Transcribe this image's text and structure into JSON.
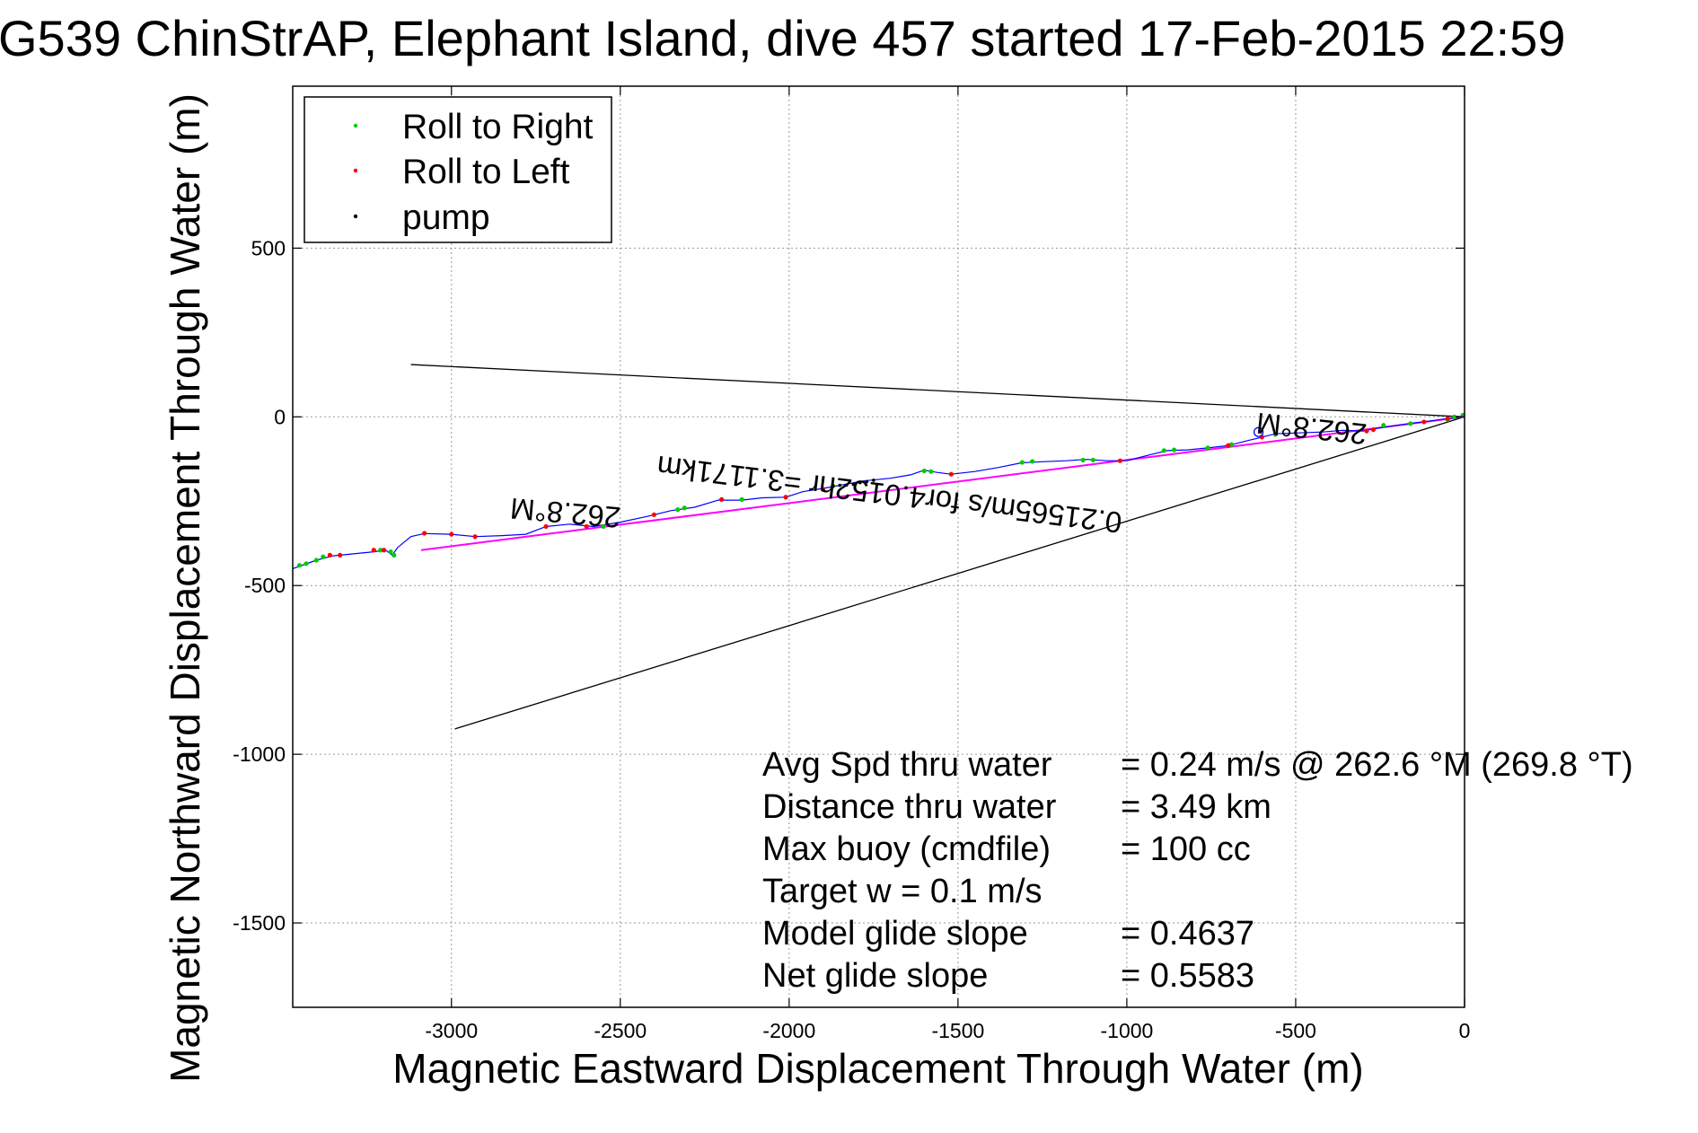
{
  "title": "G539 ChinStrAP, Elephant Island, dive 457 started 17-Feb-2015 22:59",
  "chart_data": {
    "type": "line",
    "xlabel": "Magnetic Eastward Displacement Through Water (m)",
    "ylabel": "Magnetic Northward Displacement Through Water (m)",
    "xlim": [
      -3470,
      0
    ],
    "ylim": [
      -1750,
      980
    ],
    "xticks": [
      -3000,
      -2500,
      -2000,
      -1500,
      -1000,
      -500,
      0
    ],
    "yticks": [
      500,
      0,
      -500,
      -1000,
      -1500
    ],
    "grid": true,
    "legend_position": "top-left",
    "legend": [
      {
        "label": "Roll to Right",
        "color": "#00cc00"
      },
      {
        "label": "Roll to Left",
        "color": "#ff0000"
      },
      {
        "label": "pump",
        "color": "#000000"
      }
    ],
    "series": [
      {
        "name": "Roll to Right",
        "color": "#00cc00",
        "points": [
          [
            -3450,
            -440
          ],
          [
            -3430,
            -435
          ],
          [
            -3400,
            -425
          ],
          [
            -3380,
            -415
          ],
          [
            -3210,
            -395
          ],
          [
            -3180,
            -400
          ],
          [
            -3170,
            -410
          ],
          [
            -2550,
            -325
          ],
          [
            -2330,
            -275
          ],
          [
            -2310,
            -270
          ],
          [
            -2140,
            -245
          ],
          [
            -1870,
            -205
          ],
          [
            -1600,
            -160
          ],
          [
            -1580,
            -162
          ],
          [
            -1310,
            -135
          ],
          [
            -1280,
            -132
          ],
          [
            -1130,
            -128
          ],
          [
            -1100,
            -128
          ],
          [
            -890,
            -100
          ],
          [
            -860,
            -98
          ],
          [
            -760,
            -92
          ],
          [
            -690,
            -82
          ],
          [
            -560,
            -52
          ],
          [
            -240,
            -25
          ],
          [
            -160,
            -20
          ],
          [
            -50,
            -8
          ],
          [
            -30,
            0
          ],
          [
            -5,
            5
          ]
        ]
      },
      {
        "name": "Roll to Left",
        "color": "#ff0000",
        "points": [
          [
            -3360,
            -410
          ],
          [
            -3330,
            -410
          ],
          [
            -3230,
            -395
          ],
          [
            -3200,
            -395
          ],
          [
            -3080,
            -345
          ],
          [
            -3000,
            -348
          ],
          [
            -2930,
            -355
          ],
          [
            -2720,
            -325
          ],
          [
            -2600,
            -325
          ],
          [
            -2400,
            -290
          ],
          [
            -2200,
            -245
          ],
          [
            -2010,
            -238
          ],
          [
            -1900,
            -215
          ],
          [
            -1520,
            -170
          ],
          [
            -1020,
            -130
          ],
          [
            -700,
            -85
          ],
          [
            -600,
            -60
          ],
          [
            -290,
            -42
          ],
          [
            -270,
            -38
          ],
          [
            -120,
            -15
          ],
          [
            -50,
            -5
          ]
        ]
      },
      {
        "name": "pump",
        "color": "#000000",
        "points": [
          [
            -1870,
            -205
          ],
          [
            -1850,
            -203
          ],
          [
            -1830,
            -202
          ],
          [
            -1810,
            -200
          ],
          [
            -1790,
            -195
          ],
          [
            -1770,
            -192
          ],
          [
            -1750,
            -188
          ]
        ]
      }
    ],
    "track": [
      [
        -3470,
        -450
      ],
      [
        -3400,
        -425
      ],
      [
        -3350,
        -412
      ],
      [
        -3280,
        -405
      ],
      [
        -3230,
        -400
      ],
      [
        -3195,
        -395
      ],
      [
        -3175,
        -410
      ],
      [
        -3160,
        -388
      ],
      [
        -3120,
        -355
      ],
      [
        -3080,
        -346
      ],
      [
        -3000,
        -348
      ],
      [
        -2930,
        -355
      ],
      [
        -2850,
        -352
      ],
      [
        -2780,
        -348
      ],
      [
        -2720,
        -325
      ],
      [
        -2650,
        -318
      ],
      [
        -2580,
        -325
      ],
      [
        -2500,
        -312
      ],
      [
        -2420,
        -295
      ],
      [
        -2350,
        -278
      ],
      [
        -2280,
        -268
      ],
      [
        -2210,
        -247
      ],
      [
        -2140,
        -247
      ],
      [
        -2080,
        -240
      ],
      [
        -2010,
        -238
      ],
      [
        -1960,
        -222
      ],
      [
        -1900,
        -212
      ],
      [
        -1850,
        -203
      ],
      [
        -1780,
        -190
      ],
      [
        -1700,
        -182
      ],
      [
        -1640,
        -172
      ],
      [
        -1600,
        -158
      ],
      [
        -1560,
        -165
      ],
      [
        -1520,
        -170
      ],
      [
        -1450,
        -162
      ],
      [
        -1380,
        -150
      ],
      [
        -1310,
        -136
      ],
      [
        -1250,
        -133
      ],
      [
        -1180,
        -130
      ],
      [
        -1120,
        -126
      ],
      [
        -1060,
        -130
      ],
      [
        -1000,
        -130
      ],
      [
        -930,
        -112
      ],
      [
        -880,
        -100
      ],
      [
        -820,
        -98
      ],
      [
        -760,
        -92
      ],
      [
        -700,
        -85
      ],
      [
        -640,
        -70
      ],
      [
        -600,
        -60
      ],
      [
        -560,
        -50
      ],
      [
        -500,
        -48
      ],
      [
        -420,
        -45
      ],
      [
        -360,
        -40
      ],
      [
        -300,
        -42
      ],
      [
        -260,
        -34
      ],
      [
        -200,
        -25
      ],
      [
        -150,
        -18
      ],
      [
        -100,
        -12
      ],
      [
        -50,
        -5
      ],
      [
        0,
        0
      ]
    ],
    "wedge_lines": [
      {
        "x": [
          -3120,
          0
        ],
        "y": [
          155,
          0
        ]
      },
      {
        "x": [
          -2990,
          0
        ],
        "y": [
          -925,
          0
        ]
      }
    ],
    "current_vector": {
      "x": [
        -3090,
        0
      ],
      "y": [
        -395,
        0
      ]
    },
    "start_marker": {
      "x": -610,
      "y": -45
    },
    "annotations": [
      {
        "text": "262.8°M",
        "x": -2660,
        "y": -255,
        "rotation": 185
      },
      {
        "text": "262.8°M",
        "x": -450,
        "y": -5,
        "rotation": 186
      },
      {
        "text": "0.21565m/s for4.0152hr =3.1171km",
        "x": -1700,
        "y": -200,
        "rotation": 187
      }
    ],
    "stats": [
      {
        "label": "Avg Spd thru water",
        "value": "=  0.24 m/s @ 262.6 °M (269.8 °T)"
      },
      {
        "label": "Distance thru water",
        "value": "=  3.49 km"
      },
      {
        "label": "Max buoy (cmdfile)",
        "value": "= 100 cc"
      },
      {
        "label": "Target w    = 0.1 m/s",
        "value": ""
      },
      {
        "label": "Model glide slope",
        "value": "= 0.4637"
      },
      {
        "label": "Net glide slope",
        "value": "= 0.5583"
      }
    ]
  }
}
